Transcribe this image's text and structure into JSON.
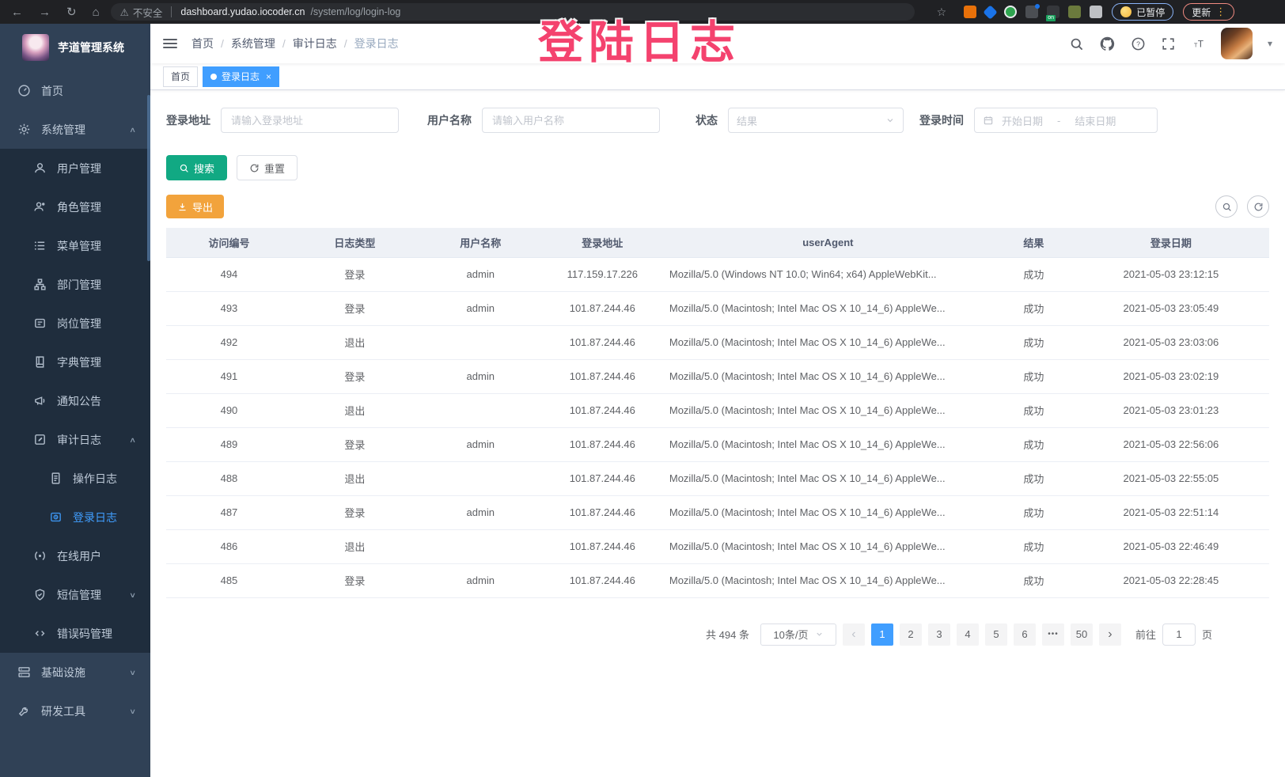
{
  "colors": {
    "accent": "#409EFF",
    "sidebar_bg": "#304156",
    "submenu_bg": "#1F2D3D",
    "search_button": "#11A983",
    "export_button": "#F2A33C",
    "overlay_pink": "#F4426E"
  },
  "browser": {
    "security_label": "不安全",
    "url_domain": "dashboard.yudao.iocoder.cn",
    "url_path": "/system/log/login-log",
    "paused_badge": "已暂停",
    "update_badge": "更新"
  },
  "overlay": {
    "text": "登陆日志"
  },
  "sidebar": {
    "title": "芋道管理系统",
    "items": [
      {
        "id": "home",
        "label": "首页",
        "icon": "dashboard-icon",
        "level": 0
      },
      {
        "id": "system-management",
        "label": "系统管理",
        "icon": "gear-icon",
        "level": 0,
        "chevron": "up"
      },
      {
        "id": "user-management",
        "label": "用户管理",
        "icon": "user-icon",
        "level": 1
      },
      {
        "id": "role-management",
        "label": "角色管理",
        "icon": "role-icon",
        "level": 1
      },
      {
        "id": "menu-management",
        "label": "菜单管理",
        "icon": "menu-icon",
        "level": 1
      },
      {
        "id": "dept-management",
        "label": "部门管理",
        "icon": "tree-icon",
        "level": 1
      },
      {
        "id": "post-management",
        "label": "岗位管理",
        "icon": "post-icon",
        "level": 1
      },
      {
        "id": "dict-management",
        "label": "字典管理",
        "icon": "dict-icon",
        "level": 1
      },
      {
        "id": "notice-announcement",
        "label": "通知公告",
        "icon": "megaphone-icon",
        "level": 1
      },
      {
        "id": "audit-log",
        "label": "审计日志",
        "icon": "edit-icon",
        "level": 1,
        "chevron": "up"
      },
      {
        "id": "operate-log",
        "label": "操作日志",
        "icon": "document-icon",
        "level": 2
      },
      {
        "id": "login-log",
        "label": "登录日志",
        "icon": "login-log-icon",
        "level": 2,
        "active": true
      },
      {
        "id": "online-users",
        "label": "在线用户",
        "icon": "online-icon",
        "level": 1
      },
      {
        "id": "sms-management",
        "label": "短信管理",
        "icon": "shield-check-icon",
        "level": 1,
        "chevron": "down"
      },
      {
        "id": "error-code-management",
        "label": "错误码管理",
        "icon": "code-icon",
        "level": 1
      },
      {
        "id": "infrastructure",
        "label": "基础设施",
        "icon": "server-icon",
        "level": 0,
        "chevron": "down"
      },
      {
        "id": "dev-tools",
        "label": "研发工具",
        "icon": "tools-icon",
        "level": 0,
        "chevron": "down"
      }
    ]
  },
  "navbar": {
    "breadcrumb": [
      "首页",
      "系统管理",
      "审计日志",
      "登录日志"
    ]
  },
  "tags": [
    {
      "label": "首页",
      "active": false
    },
    {
      "label": "登录日志",
      "active": true
    }
  ],
  "filters": {
    "login_address": {
      "label": "登录地址",
      "placeholder": "请输入登录地址"
    },
    "username": {
      "label": "用户名称",
      "placeholder": "请输入用户名称"
    },
    "status": {
      "label": "状态",
      "placeholder": "结果"
    },
    "login_time": {
      "label": "登录时间",
      "start_placeholder": "开始日期",
      "separator": "-",
      "end_placeholder": "结束日期"
    },
    "search_label": "搜索",
    "reset_label": "重置"
  },
  "toolbar": {
    "export_label": "导出"
  },
  "table": {
    "headers": [
      "访问编号",
      "日志类型",
      "用户名称",
      "登录地址",
      "userAgent",
      "结果",
      "登录日期"
    ],
    "rows": [
      [
        "494",
        "登录",
        "admin",
        "117.159.17.226",
        "Mozilla/5.0 (Windows NT 10.0; Win64; x64) AppleWebKit...",
        "成功",
        "2021-05-03 23:12:15"
      ],
      [
        "493",
        "登录",
        "admin",
        "101.87.244.46",
        "Mozilla/5.0 (Macintosh; Intel Mac OS X 10_14_6) AppleWe...",
        "成功",
        "2021-05-03 23:05:49"
      ],
      [
        "492",
        "退出",
        "",
        "101.87.244.46",
        "Mozilla/5.0 (Macintosh; Intel Mac OS X 10_14_6) AppleWe...",
        "成功",
        "2021-05-03 23:03:06"
      ],
      [
        "491",
        "登录",
        "admin",
        "101.87.244.46",
        "Mozilla/5.0 (Macintosh; Intel Mac OS X 10_14_6) AppleWe...",
        "成功",
        "2021-05-03 23:02:19"
      ],
      [
        "490",
        "退出",
        "",
        "101.87.244.46",
        "Mozilla/5.0 (Macintosh; Intel Mac OS X 10_14_6) AppleWe...",
        "成功",
        "2021-05-03 23:01:23"
      ],
      [
        "489",
        "登录",
        "admin",
        "101.87.244.46",
        "Mozilla/5.0 (Macintosh; Intel Mac OS X 10_14_6) AppleWe...",
        "成功",
        "2021-05-03 22:56:06"
      ],
      [
        "488",
        "退出",
        "",
        "101.87.244.46",
        "Mozilla/5.0 (Macintosh; Intel Mac OS X 10_14_6) AppleWe...",
        "成功",
        "2021-05-03 22:55:05"
      ],
      [
        "487",
        "登录",
        "admin",
        "101.87.244.46",
        "Mozilla/5.0 (Macintosh; Intel Mac OS X 10_14_6) AppleWe...",
        "成功",
        "2021-05-03 22:51:14"
      ],
      [
        "486",
        "退出",
        "",
        "101.87.244.46",
        "Mozilla/5.0 (Macintosh; Intel Mac OS X 10_14_6) AppleWe...",
        "成功",
        "2021-05-03 22:46:49"
      ],
      [
        "485",
        "登录",
        "admin",
        "101.87.244.46",
        "Mozilla/5.0 (Macintosh; Intel Mac OS X 10_14_6) AppleWe...",
        "成功",
        "2021-05-03 22:28:45"
      ]
    ]
  },
  "pagination": {
    "total_text": "共 494 条",
    "page_size": "10条/页",
    "pages": [
      "1",
      "2",
      "3",
      "4",
      "5",
      "6",
      "•••",
      "50"
    ],
    "active_page": "1",
    "prev_symbol": "‹",
    "next_symbol": "›",
    "goto_label": "前往",
    "goto_value": "1",
    "goto_suffix": "页"
  }
}
